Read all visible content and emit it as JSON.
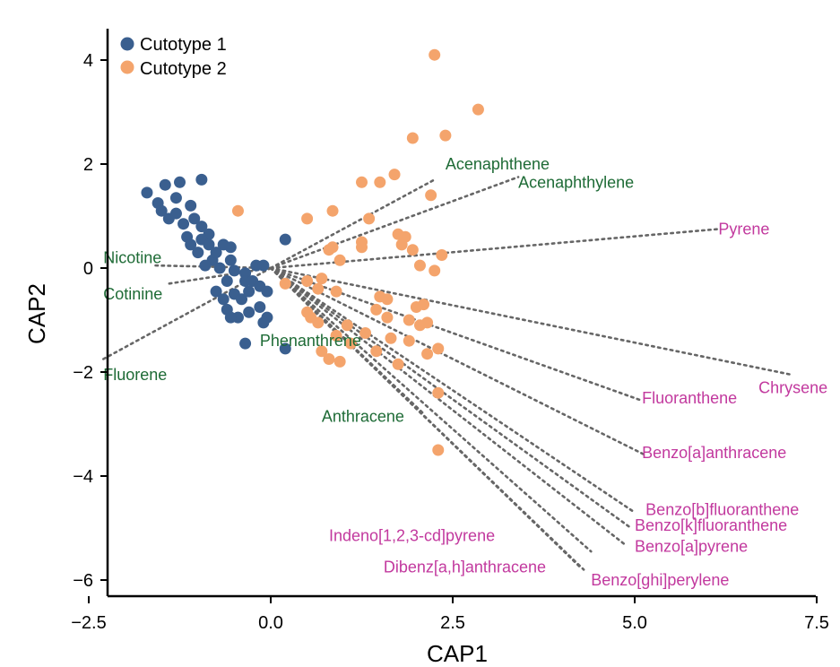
{
  "chart_data": {
    "type": "scatter",
    "title": "",
    "xlabel": "CAP1",
    "ylabel": "CAP2",
    "xlim": [
      -2.6,
      7.6
    ],
    "ylim": [
      -6.2,
      4.35
    ],
    "xticks": [
      -2.5,
      0.0,
      2.5,
      5.0,
      7.5
    ],
    "xtick_labels": [
      "−2.5",
      "0.0",
      "2.5",
      "5.0",
      "7.5"
    ],
    "yticks": [
      -6,
      -4,
      -2,
      0,
      2,
      4
    ],
    "ytick_labels": [
      "−6",
      "−4",
      "−2",
      "0",
      "2",
      "4"
    ],
    "grid": false,
    "legend_position": "top-left",
    "colors": {
      "cutotype1": "#3a5f8f",
      "cutotype2": "#f4a46c",
      "green_label": "#1e6b36",
      "magenta_label": "#c2399e",
      "vector": "#666666"
    },
    "series": [
      {
        "name": "Cutotype 1",
        "color": "#3a5f8f",
        "points": [
          [
            -1.7,
            1.45
          ],
          [
            -1.45,
            1.6
          ],
          [
            -1.25,
            1.65
          ],
          [
            -0.95,
            1.7
          ],
          [
            -1.55,
            1.25
          ],
          [
            -1.3,
            1.35
          ],
          [
            -1.5,
            1.1
          ],
          [
            -1.4,
            0.95
          ],
          [
            -1.3,
            1.05
          ],
          [
            -1.2,
            0.85
          ],
          [
            -1.05,
            0.95
          ],
          [
            -1.1,
            1.2
          ],
          [
            -0.95,
            0.8
          ],
          [
            -0.85,
            0.65
          ],
          [
            -1.15,
            0.6
          ],
          [
            -0.95,
            0.55
          ],
          [
            -1.1,
            0.45
          ],
          [
            -0.85,
            0.45
          ],
          [
            -1.0,
            0.3
          ],
          [
            -0.8,
            0.15
          ],
          [
            -0.65,
            0.45
          ],
          [
            -0.55,
            0.4
          ],
          [
            -0.75,
            0.3
          ],
          [
            -0.9,
            0.05
          ],
          [
            -0.7,
            0.0
          ],
          [
            -0.55,
            0.15
          ],
          [
            -0.5,
            -0.05
          ],
          [
            -0.35,
            -0.1
          ],
          [
            -0.2,
            0.05
          ],
          [
            -0.1,
            0.05
          ],
          [
            -0.6,
            -0.25
          ],
          [
            -0.35,
            -0.25
          ],
          [
            -0.25,
            -0.25
          ],
          [
            -0.15,
            -0.35
          ],
          [
            -0.05,
            -0.45
          ],
          [
            -0.75,
            -0.45
          ],
          [
            -0.5,
            -0.5
          ],
          [
            -0.4,
            -0.6
          ],
          [
            -0.3,
            -0.45
          ],
          [
            -0.65,
            -0.6
          ],
          [
            -0.6,
            -0.8
          ],
          [
            -0.45,
            -0.95
          ],
          [
            -0.3,
            -0.85
          ],
          [
            -0.55,
            -0.95
          ],
          [
            -0.15,
            -0.75
          ],
          [
            -0.05,
            -0.95
          ],
          [
            -0.1,
            -1.05
          ],
          [
            -0.35,
            -1.45
          ],
          [
            0.2,
            0.55
          ],
          [
            0.2,
            -1.55
          ]
        ]
      },
      {
        "name": "Cutotype 2",
        "color": "#f4a46c",
        "points": [
          [
            2.25,
            4.1
          ],
          [
            2.85,
            3.05
          ],
          [
            2.4,
            2.55
          ],
          [
            1.95,
            2.5
          ],
          [
            1.7,
            1.8
          ],
          [
            1.5,
            1.65
          ],
          [
            1.25,
            1.65
          ],
          [
            2.2,
            1.4
          ],
          [
            -0.45,
            1.1
          ],
          [
            0.5,
            0.95
          ],
          [
            0.85,
            1.1
          ],
          [
            1.35,
            0.95
          ],
          [
            1.75,
            0.65
          ],
          [
            1.85,
            0.6
          ],
          [
            1.8,
            0.45
          ],
          [
            1.25,
            0.4
          ],
          [
            1.25,
            0.5
          ],
          [
            0.85,
            0.4
          ],
          [
            0.8,
            0.35
          ],
          [
            0.95,
            0.15
          ],
          [
            1.95,
            0.35
          ],
          [
            2.35,
            0.25
          ],
          [
            2.05,
            0.05
          ],
          [
            2.25,
            -0.05
          ],
          [
            0.2,
            -0.3
          ],
          [
            0.5,
            -0.25
          ],
          [
            0.7,
            -0.2
          ],
          [
            0.65,
            -0.4
          ],
          [
            0.9,
            -0.45
          ],
          [
            1.5,
            -0.55
          ],
          [
            1.6,
            -0.6
          ],
          [
            1.45,
            -0.8
          ],
          [
            1.6,
            -0.95
          ],
          [
            2.0,
            -0.75
          ],
          [
            2.1,
            -0.7
          ],
          [
            1.9,
            -1.0
          ],
          [
            2.05,
            -1.1
          ],
          [
            2.15,
            -1.05
          ],
          [
            0.5,
            -0.85
          ],
          [
            0.55,
            -0.95
          ],
          [
            0.65,
            -1.05
          ],
          [
            1.05,
            -1.1
          ],
          [
            1.3,
            -1.25
          ],
          [
            1.65,
            -1.35
          ],
          [
            1.9,
            -1.4
          ],
          [
            0.9,
            -1.3
          ],
          [
            1.1,
            -1.45
          ],
          [
            0.7,
            -1.6
          ],
          [
            0.8,
            -1.75
          ],
          [
            0.95,
            -1.8
          ],
          [
            1.45,
            -1.6
          ],
          [
            2.15,
            -1.65
          ],
          [
            2.3,
            -1.55
          ],
          [
            1.75,
            -1.85
          ],
          [
            2.3,
            -2.4
          ],
          [
            2.3,
            -3.5
          ]
        ]
      }
    ],
    "vectors": [
      {
        "label": "Acenaphthene",
        "tip": [
          2.25,
          1.7
        ],
        "color": "green"
      },
      {
        "label": "Acenaphthylene",
        "tip": [
          3.4,
          1.75
        ],
        "color": "green"
      },
      {
        "label": "Pyrene",
        "tip": [
          6.15,
          0.75
        ],
        "color": "magenta"
      },
      {
        "label": "Nicotine",
        "tip": [
          -1.6,
          0.05
        ],
        "color": "green"
      },
      {
        "label": "Cotinine",
        "tip": [
          -1.4,
          -0.3
        ],
        "color": "green"
      },
      {
        "label": "Fluorene",
        "tip": [
          -2.3,
          -1.75
        ],
        "color": "green"
      },
      {
        "label": "Phenanthrene",
        "tip": [
          0.9,
          -1.25
        ],
        "color": "green"
      },
      {
        "label": "Anthracene",
        "tip": [
          2.1,
          -2.8
        ],
        "color": "green"
      },
      {
        "label": "Chrysene",
        "tip": [
          7.15,
          -2.05
        ],
        "color": "magenta"
      },
      {
        "label": "Fluoranthene",
        "tip": [
          5.1,
          -2.55
        ],
        "color": "magenta"
      },
      {
        "label": "Benzo[a]anthracene",
        "tip": [
          5.15,
          -3.6
        ],
        "color": "magenta"
      },
      {
        "label": "Benzo[b]fluoranthene",
        "tip": [
          5.0,
          -4.7
        ],
        "color": "magenta"
      },
      {
        "label": "Benzo[k]fluoranthene",
        "tip": [
          4.95,
          -5.0
        ],
        "color": "magenta"
      },
      {
        "label": "Benzo[a]pyrene",
        "tip": [
          4.85,
          -5.3
        ],
        "color": "magenta"
      },
      {
        "label": "Indeno[1,2,3-cd]pyrene",
        "tip": [
          4.4,
          -5.45
        ],
        "color": "magenta"
      },
      {
        "label": "Dibenz[a,h]anthracene",
        "tip": [
          4.25,
          -5.75
        ],
        "color": "magenta"
      },
      {
        "label": "Benzo[ghi]perylene",
        "tip": [
          4.3,
          -5.8
        ],
        "color": "magenta"
      }
    ],
    "vector_labels": [
      {
        "label": "Acenaphthene",
        "at": [
          2.4,
          2.0
        ],
        "anchor": "start"
      },
      {
        "label": "Acenaphthylene",
        "at": [
          3.4,
          1.65
        ],
        "anchor": "start"
      },
      {
        "label": "Pyrene",
        "at": [
          6.15,
          0.75
        ],
        "anchor": "start"
      },
      {
        "label": "Nicotine",
        "at": [
          -2.3,
          0.2
        ],
        "anchor": "start"
      },
      {
        "label": "Cotinine",
        "at": [
          -2.3,
          -0.5
        ],
        "anchor": "start"
      },
      {
        "label": "Fluorene",
        "at": [
          -2.3,
          -2.05
        ],
        "anchor": "start"
      },
      {
        "label": "Phenanthrene",
        "at": [
          -0.15,
          -1.4
        ],
        "anchor": "start"
      },
      {
        "label": "Anthracene",
        "at": [
          0.7,
          -2.85
        ],
        "anchor": "start"
      },
      {
        "label": "Chrysene",
        "at": [
          7.65,
          -2.3
        ],
        "anchor": "end"
      },
      {
        "label": "Fluoranthene",
        "at": [
          5.1,
          -2.5
        ],
        "anchor": "start"
      },
      {
        "label": "Benzo[a]anthracene",
        "at": [
          5.1,
          -3.55
        ],
        "anchor": "start"
      },
      {
        "label": "Benzo[b]fluoranthene",
        "at": [
          5.15,
          -4.65
        ],
        "anchor": "start"
      },
      {
        "label": "Benzo[k]fluoranthene",
        "at": [
          5.0,
          -4.95
        ],
        "anchor": "start"
      },
      {
        "label": "Benzo[a]pyrene",
        "at": [
          5.0,
          -5.35
        ],
        "anchor": "start"
      },
      {
        "label": "Indeno[1,2,3-cd]pyrene",
        "at": [
          0.8,
          -5.15
        ],
        "anchor": "start"
      },
      {
        "label": "Dibenz[a,h]anthracene",
        "at": [
          1.55,
          -5.75
        ],
        "anchor": "start"
      },
      {
        "label": "Benzo[ghi]perylene",
        "at": [
          4.4,
          -6.0
        ],
        "anchor": "start"
      }
    ]
  }
}
